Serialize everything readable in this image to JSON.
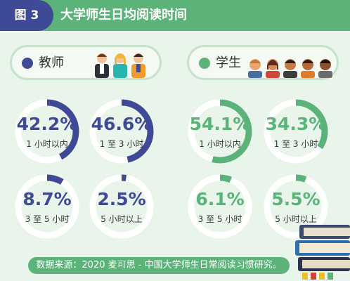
{
  "header": {
    "badge": "图 3",
    "title": "大学师生日均阅读时间"
  },
  "colors": {
    "teacher": "#3f4a96",
    "student": "#5cb37a",
    "track": "#ffffff",
    "header": "#5cb37a"
  },
  "groups": {
    "teacher": {
      "label": "教师",
      "icon": "teachers-illustration-icon"
    },
    "student": {
      "label": "学生",
      "icon": "students-illustration-icon"
    }
  },
  "chart_data": [
    {
      "type": "donut",
      "series": [
        {
          "name": "教师",
          "items": [
            {
              "label": "1 小时以内",
              "value": 42.2,
              "display": "42.2%"
            },
            {
              "label": "1 至 3 小时",
              "value": 46.6,
              "display": "46.6%"
            },
            {
              "label": "3 至 5 小时",
              "value": 8.7,
              "display": "8.7%"
            },
            {
              "label": "5 小时以上",
              "value": 2.5,
              "display": "2.5%"
            }
          ]
        }
      ]
    },
    {
      "type": "donut",
      "series": [
        {
          "name": "学生",
          "items": [
            {
              "label": "1 小时以内",
              "value": 54.1,
              "display": "54.1%"
            },
            {
              "label": "1 至 3 小时",
              "value": 34.3,
              "display": "34.3%"
            },
            {
              "label": "3 至 5 小时",
              "value": 6.1,
              "display": "6.1%"
            },
            {
              "label": "5 小时以上",
              "value": 5.5,
              "display": "5.5%"
            }
          ]
        }
      ]
    }
  ],
  "footer": {
    "source": "数据来源：2020 麦可思 - 中国大学师生日常阅读习惯研究。"
  }
}
